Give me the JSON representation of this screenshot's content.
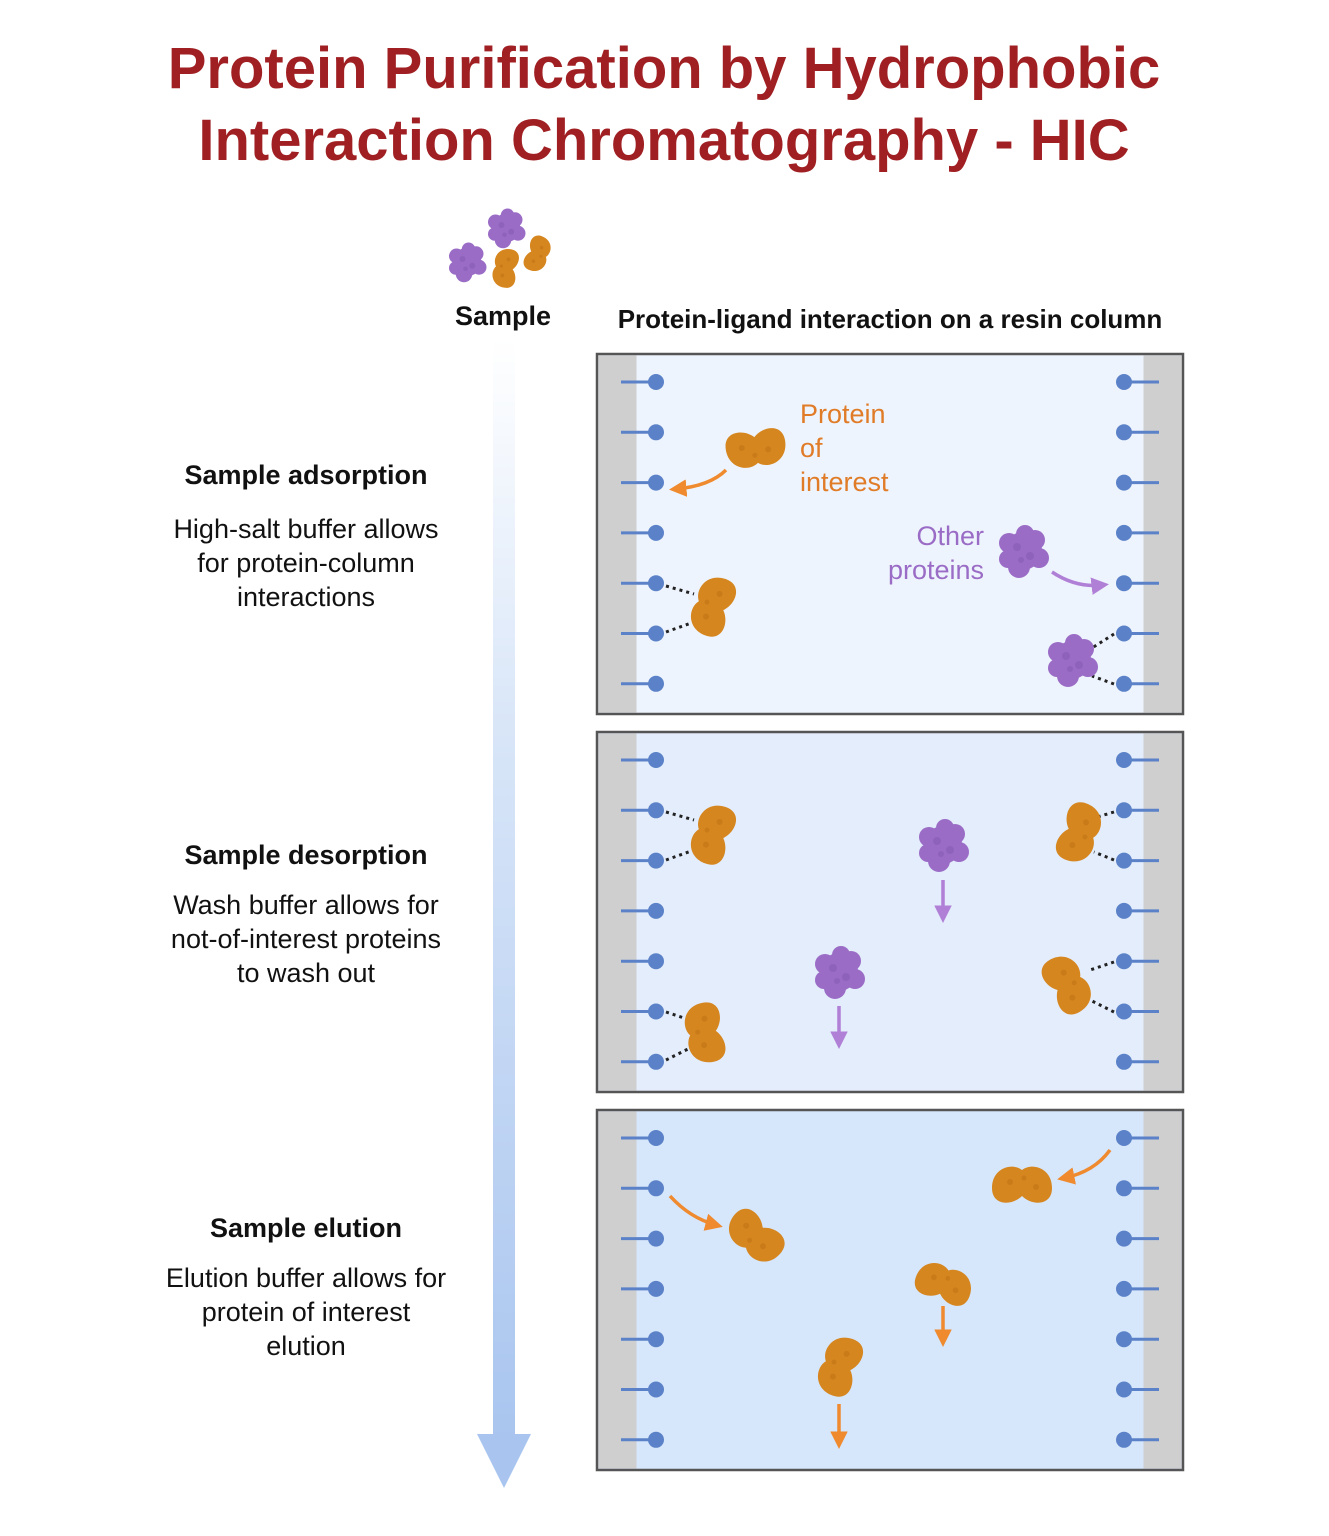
{
  "title": {
    "line1": "Protein Purification by Hydrophobic",
    "line2": "Interaction Chromatography - HIC"
  },
  "sample_label": "Sample",
  "column_header": "Protein-ligand interaction on a resin column",
  "stages": [
    {
      "heading": "Sample adsorption",
      "lines": [
        "High-salt buffer allows",
        "for protein-column",
        "interactions"
      ]
    },
    {
      "heading": "Sample desorption",
      "lines": [
        "Wash buffer allows for",
        "not-of-interest proteins",
        "to wash out"
      ]
    },
    {
      "heading": "Sample elution",
      "lines": [
        "Elution buffer allows for",
        "protein of interest",
        "elution"
      ]
    }
  ],
  "labels": {
    "protein_of_interest": [
      "Protein",
      "of",
      "interest"
    ],
    "other_proteins": [
      "Other",
      "proteins"
    ]
  },
  "colors": {
    "title": "#a01f23",
    "protein_of_interest": "#d6861f",
    "other_proteins": "#9a6cc6",
    "arrow_orange": "#ef8a2e",
    "arrow_purple": "#b07fd6",
    "ligand": "#5b82c8",
    "column_wall": "#cfcfcf",
    "panel_fill_1": "#eef4fd",
    "panel_fill_2": "#e3edfc",
    "panel_fill_3": "#d6e6fb",
    "flow_arrow": "#a9c5ef"
  },
  "icons": [
    "protein-of-interest-icon",
    "other-protein-icon",
    "ligand-bead-icon",
    "flow-arrow-icon"
  ]
}
